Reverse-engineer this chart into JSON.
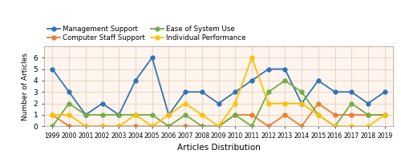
{
  "years": [
    1999,
    2000,
    2001,
    2002,
    2003,
    2004,
    2005,
    2006,
    2007,
    2008,
    2009,
    2010,
    2011,
    2012,
    2013,
    2014,
    2015,
    2016,
    2017,
    2018,
    2019
  ],
  "management_support": [
    5,
    3,
    1,
    2,
    1,
    4,
    6,
    1,
    3,
    3,
    2,
    3,
    4,
    5,
    5,
    2,
    4,
    3,
    3,
    2,
    3
  ],
  "computer_staff_support": [
    1,
    0,
    0,
    0,
    0,
    0,
    0,
    0,
    0,
    0,
    0,
    1,
    1,
    0,
    1,
    0,
    2,
    1,
    1,
    1,
    1
  ],
  "ease_of_system_use": [
    0,
    2,
    1,
    1,
    1,
    1,
    1,
    0,
    1,
    0,
    0,
    1,
    0,
    3,
    4,
    3,
    1,
    0,
    2,
    1,
    1
  ],
  "individual_performance": [
    1,
    1,
    0,
    0,
    0,
    1,
    0,
    1,
    2,
    1,
    0,
    2,
    6,
    2,
    2,
    2,
    1,
    0,
    0,
    0,
    1
  ],
  "series_colors": [
    "#2e75b6",
    "#ed7d31",
    "#a9a9a9",
    "#ffc000"
  ],
  "series_line_colors": [
    "#2e75b6",
    "#ed7d31",
    "#70ad47",
    "#ffc000"
  ],
  "legend_labels": [
    "Management Support",
    "Computer Staff Support",
    "Ease of System Use",
    "Individual Performance"
  ],
  "legend_order": [
    0,
    2,
    1,
    3
  ],
  "xlabel": "Articles Distribution",
  "ylabel": "Number of Articles",
  "ylim": [
    0,
    7
  ],
  "yticks": [
    0,
    1,
    2,
    3,
    4,
    5,
    6,
    7
  ],
  "background_color": "#fff5ee",
  "grid_color": "#e0c8b0"
}
